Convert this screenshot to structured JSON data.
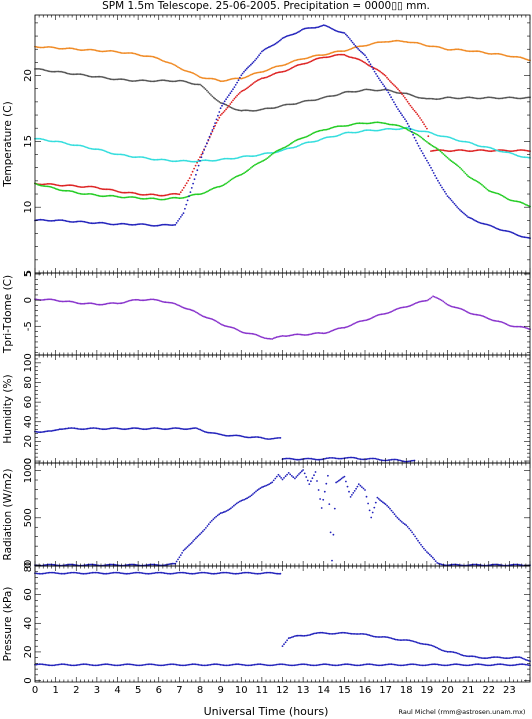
{
  "title": "SPM 1.5m Telescope. 25-06-2005. Precipitation = 0000▯▯ mm.",
  "credit": "Raul Michel (rmm@astrosen.unam.mx)",
  "chart_data": [
    {
      "type": "scatter",
      "panel": "temperature",
      "ylabel": "Temperature (C)",
      "xlabel": "",
      "xlim": [
        0,
        24
      ],
      "ylim": [
        5,
        24.6
      ],
      "yticks": [
        5,
        10,
        15,
        20
      ],
      "series": [
        {
          "color": "#f08a24",
          "x": [
            0,
            1,
            2,
            3,
            4,
            5,
            6,
            7,
            8,
            9,
            10,
            11,
            12,
            13,
            14,
            15,
            16,
            17,
            18,
            19,
            20,
            21,
            22,
            23,
            24
          ],
          "y": [
            22.2,
            22.1,
            22.0,
            21.9,
            21.8,
            21.6,
            21.3,
            20.6,
            19.9,
            19.6,
            19.8,
            20.3,
            20.8,
            21.3,
            21.6,
            21.9,
            22.3,
            22.6,
            22.6,
            22.3,
            22.0,
            21.9,
            21.7,
            21.5,
            21.2
          ]
        },
        {
          "color": "#555555",
          "x": [
            0,
            1,
            2,
            3,
            4,
            5,
            6,
            7,
            8,
            9,
            10,
            11,
            12,
            13,
            14,
            15,
            16,
            17,
            18,
            19,
            20,
            21,
            22,
            23,
            24
          ],
          "y": [
            20.5,
            20.3,
            20.1,
            19.9,
            19.7,
            19.6,
            19.6,
            19.6,
            19.3,
            17.9,
            17.3,
            17.4,
            17.7,
            18.0,
            18.3,
            18.7,
            18.9,
            18.9,
            18.6,
            18.2,
            18.3,
            18.3,
            18.3,
            18.3,
            18.3
          ]
        },
        {
          "color": "#dd2222",
          "x": [
            0,
            1,
            2,
            3,
            4,
            5,
            6,
            7,
            7.5,
            8,
            9,
            10,
            11,
            12,
            13,
            14,
            15,
            16,
            17,
            18,
            19,
            19.2,
            20,
            21,
            22,
            23,
            24
          ],
          "y": [
            11.8,
            11.7,
            11.6,
            11.5,
            11.2,
            11.0,
            10.9,
            11.0,
            12.2,
            13.8,
            17.0,
            18.8,
            19.8,
            20.3,
            20.9,
            21.4,
            21.6,
            21.0,
            20.0,
            18.2,
            16.0,
            14.3,
            14.3,
            14.3,
            14.3,
            14.3,
            14.3
          ]
        },
        {
          "color": "#33dddd",
          "x": [
            0,
            1,
            2,
            3,
            4,
            5,
            6,
            7,
            8,
            9,
            10,
            11,
            12,
            13,
            14,
            15,
            16,
            17,
            18,
            19,
            20,
            21,
            22,
            23,
            24
          ],
          "y": [
            15.2,
            15.0,
            14.7,
            14.4,
            14.0,
            13.8,
            13.6,
            13.5,
            13.5,
            13.6,
            13.8,
            14.0,
            14.3,
            14.8,
            15.2,
            15.6,
            15.8,
            15.9,
            16.0,
            15.7,
            15.3,
            14.9,
            14.5,
            14.1,
            13.7
          ]
        },
        {
          "color": "#22cc22",
          "x": [
            0,
            1,
            2,
            3,
            4,
            5,
            6,
            7,
            8,
            9,
            10,
            11,
            12,
            13,
            14,
            15,
            16,
            17,
            18,
            19,
            20,
            21,
            22,
            23,
            24
          ],
          "y": [
            11.8,
            11.4,
            11.1,
            10.9,
            10.8,
            10.7,
            10.6,
            10.7,
            11.0,
            11.6,
            12.5,
            13.5,
            14.5,
            15.3,
            15.9,
            16.2,
            16.4,
            16.4,
            16.0,
            15.0,
            13.8,
            12.4,
            11.3,
            10.6,
            10.1
          ]
        },
        {
          "color": "#2222bb",
          "x": [
            0,
            1,
            2,
            3,
            4,
            5,
            6,
            6.8,
            7.2,
            8,
            9,
            10,
            11,
            12,
            13,
            14,
            15,
            16,
            17,
            18,
            19,
            20,
            21,
            22,
            23,
            24
          ],
          "y": [
            9.0,
            9.0,
            8.9,
            8.8,
            8.7,
            8.7,
            8.6,
            8.7,
            9.5,
            13.5,
            17.5,
            20.0,
            21.8,
            22.8,
            23.5,
            23.8,
            23.2,
            21.5,
            19.0,
            16.5,
            13.5,
            10.8,
            9.2,
            8.6,
            8.1,
            7.6
          ]
        }
      ]
    },
    {
      "type": "scatter",
      "panel": "tpri-tdome",
      "ylabel": "Tpri-Tdome (C)",
      "xlabel": "",
      "xlim": [
        0,
        24
      ],
      "ylim": [
        -10.5,
        5.2
      ],
      "yticks": [
        -5,
        0,
        5
      ],
      "series": [
        {
          "color": "#8833cc",
          "x": [
            0,
            1,
            2,
            3,
            4,
            5,
            6,
            7,
            8,
            9,
            10,
            11,
            11.5,
            12,
            13,
            14,
            15,
            16,
            17,
            18,
            19,
            19.3,
            20,
            21,
            22,
            23,
            24
          ],
          "y": [
            0.2,
            0.0,
            -0.5,
            -0.8,
            -0.6,
            0.1,
            0.0,
            -1.0,
            -2.7,
            -4.5,
            -6.0,
            -7.0,
            -7.5,
            -6.8,
            -6.6,
            -6.3,
            -5.2,
            -3.8,
            -2.5,
            -1.2,
            0.0,
            0.8,
            -0.8,
            -2.3,
            -3.5,
            -4.8,
            -5.5
          ]
        }
      ]
    },
    {
      "type": "scatter",
      "panel": "humidity",
      "ylabel": "Humidity (%)",
      "xlabel": "",
      "xlim": [
        0,
        24
      ],
      "ylim": [
        -2,
        108
      ],
      "yticks": [
        0,
        20,
        40,
        60,
        80,
        100
      ],
      "series": [
        {
          "color": "#2222bb",
          "x": [
            0,
            0.8,
            1.2,
            1.7,
            2.2,
            2.7,
            3.2,
            3.8,
            4.8,
            5.4,
            6,
            6.6,
            7.2,
            7.8,
            8.3,
            8.9,
            9.5,
            10.1,
            10.7,
            11.2,
            11.9
          ],
          "y": [
            30,
            30,
            33,
            33,
            33,
            33,
            33,
            33,
            33,
            33,
            33,
            33,
            33,
            33,
            30,
            27,
            26,
            25,
            24,
            23,
            23
          ]
        },
        {
          "color": "#2222bb",
          "x": [
            12,
            13,
            14,
            14.5,
            15,
            15.5,
            16,
            16.5,
            17,
            17.5,
            18,
            18.4
          ],
          "y": [
            2,
            2,
            2,
            3,
            3,
            3,
            2,
            2,
            1,
            1,
            0,
            0
          ]
        }
      ]
    },
    {
      "type": "scatter",
      "panel": "radiation",
      "ylabel": "Radiation (W/m2)",
      "xlabel": "",
      "xlim": [
        0,
        24
      ],
      "ylim": [
        -10,
        1080
      ],
      "yticks": [
        0,
        500,
        1000
      ],
      "series": [
        {
          "color": "#2222bb",
          "x": [
            0,
            1,
            2,
            3,
            4,
            5,
            6,
            6.8,
            7.2,
            7.6,
            8,
            8.5,
            9,
            9.5,
            10,
            10.5,
            11,
            11.5,
            11.8,
            12,
            12.3,
            12.6,
            13,
            13.3,
            13.6,
            13.9,
            14.2,
            14.4,
            14.6,
            15,
            15.3,
            15.7,
            16,
            16.3,
            16.6,
            17,
            17.5,
            18,
            18.5,
            19,
            19.5,
            20,
            21,
            22,
            23,
            24
          ],
          "y": [
            0,
            0,
            0,
            0,
            0,
            0,
            0,
            10,
            160,
            230,
            330,
            450,
            550,
            600,
            680,
            740,
            820,
            880,
            950,
            900,
            980,
            920,
            1000,
            860,
            990,
            600,
            940,
            50,
            880,
            930,
            720,
            860,
            790,
            500,
            720,
            640,
            520,
            420,
            280,
            140,
            20,
            0,
            0,
            0,
            0,
            0
          ]
        }
      ]
    },
    {
      "type": "scatter",
      "panel": "pressure",
      "ylabel": "Pressure (kPa)",
      "xlabel": "Universal Time (hours)",
      "xlim": [
        0,
        24
      ],
      "ylim": [
        -1,
        80
      ],
      "xticks": [
        0,
        1,
        2,
        3,
        4,
        5,
        6,
        7,
        8,
        9,
        10,
        11,
        12,
        13,
        14,
        15,
        16,
        17,
        18,
        19,
        20,
        21,
        22,
        23
      ],
      "yticks": [
        0,
        20,
        40,
        60,
        80
      ],
      "series": [
        {
          "color": "#2222bb",
          "x": [
            0,
            0.5,
            1,
            1.5,
            2,
            2.5,
            3,
            3.4,
            4.5,
            5,
            5.5,
            6,
            6.5,
            7,
            7.5,
            8,
            8.5,
            9,
            9.5,
            10,
            10.5,
            11,
            11.5,
            11.9
          ],
          "y": [
            75,
            75,
            75,
            75,
            75,
            75,
            75,
            75,
            75,
            75,
            75,
            75,
            75,
            75,
            75,
            75,
            75,
            75,
            75,
            75,
            75,
            75,
            75,
            75
          ]
        },
        {
          "color": "#2222bb",
          "x": [
            0,
            0.5,
            1,
            1.5,
            2,
            2.5,
            3,
            3.5,
            4,
            4.5,
            5,
            5.5,
            6,
            6.5,
            7,
            7.5,
            8,
            8.5,
            9,
            9.5,
            10,
            10.5,
            11,
            11.5,
            12,
            12.5,
            13,
            13.5,
            14,
            14.5,
            15,
            15.5,
            16,
            16.5,
            17,
            17.5,
            18,
            18.5,
            19,
            19.5,
            20,
            20.5,
            21,
            21.5,
            22,
            22.5,
            23,
            23.5,
            24
          ],
          "y": [
            11,
            11,
            11,
            11,
            11,
            11,
            11,
            11,
            11,
            11,
            11,
            11,
            11,
            11,
            11,
            11,
            11,
            11,
            11,
            11,
            11,
            11,
            11,
            11,
            11,
            11,
            11,
            11,
            11,
            11,
            11,
            11,
            11,
            11,
            11,
            11,
            11,
            11,
            11,
            11,
            11,
            11,
            11,
            11,
            11,
            11,
            11,
            11,
            11
          ]
        },
        {
          "color": "#2222bb",
          "x": [
            12,
            12.3,
            12.6,
            13,
            13.5,
            14,
            14.5,
            15,
            15.5,
            16,
            16.5,
            17,
            17.5,
            18,
            18.5,
            19,
            19.5,
            20,
            20.5,
            21,
            21.5,
            22,
            22.5,
            23,
            23.5,
            24
          ],
          "y": [
            24,
            30,
            31,
            31,
            33,
            33,
            33,
            33,
            33,
            32,
            31,
            30,
            29,
            28,
            27,
            25,
            23,
            20,
            19,
            17,
            16,
            16,
            16,
            16,
            16,
            14
          ]
        }
      ]
    }
  ]
}
